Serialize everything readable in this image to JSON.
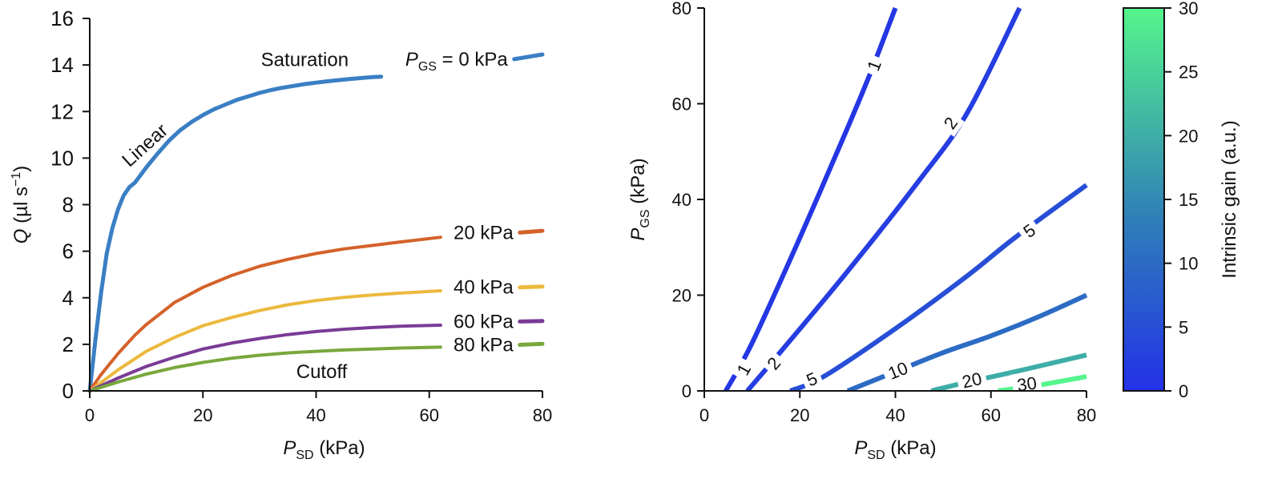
{
  "colors": {
    "gs0": "#3a7fc4",
    "gs20": "#d4622a",
    "gs40": "#ebb93d",
    "gs60": "#7a3b96",
    "gs80": "#78a83c",
    "axis": "#111111",
    "cbar_low": "#2331e8",
    "cbar_mid": "#2f7fb8",
    "cbar_high": "#55f58c"
  },
  "chart_data": [
    {
      "type": "line",
      "title": "",
      "xlabel": {
        "main": "P",
        "sub": "SD",
        "unit": " (kPa)"
      },
      "ylabel": {
        "main": "Q",
        "unit_pre": " (µl s",
        "sup": "−1",
        "unit_post": ")"
      },
      "xlim": [
        0,
        80
      ],
      "ylim": [
        0,
        16
      ],
      "xticks": [
        0,
        20,
        40,
        60,
        80
      ],
      "yticks": [
        0,
        2,
        4,
        6,
        8,
        10,
        12,
        14,
        16
      ],
      "series": [
        {
          "name": "P_GS = 0 kPa",
          "label": "0 kPa",
          "label_prefix": "P",
          "label_sub": "GS",
          "label_eq": " = ",
          "color_key": "gs0",
          "x": [
            0,
            1,
            2,
            3,
            4,
            5,
            6,
            7,
            8,
            10,
            12,
            14,
            16,
            18,
            20,
            22,
            24,
            26,
            28,
            30,
            32,
            34,
            36,
            38,
            40,
            42,
            44,
            46,
            48,
            50,
            51.5
          ],
          "y": [
            0,
            2.2,
            4.2,
            5.9,
            7.0,
            7.8,
            8.4,
            8.75,
            8.95,
            9.6,
            10.2,
            10.75,
            11.2,
            11.55,
            11.85,
            12.1,
            12.3,
            12.5,
            12.65,
            12.8,
            12.92,
            13.02,
            13.1,
            13.18,
            13.24,
            13.3,
            13.35,
            13.4,
            13.44,
            13.48,
            13.5
          ],
          "marker_x": [
            75,
            80
          ],
          "marker_y": [
            14.25,
            14.45
          ]
        },
        {
          "name": "20 kPa",
          "label": "20 kPa",
          "color_key": "gs20",
          "x": [
            0,
            2,
            5,
            8,
            10,
            15,
            20,
            25,
            30,
            35,
            40,
            45,
            50,
            55,
            62
          ],
          "y": [
            0,
            0.7,
            1.6,
            2.4,
            2.85,
            3.8,
            4.45,
            4.95,
            5.35,
            5.65,
            5.9,
            6.1,
            6.25,
            6.4,
            6.6
          ],
          "marker_x": [
            76,
            80
          ],
          "marker_y": [
            6.8,
            6.88
          ]
        },
        {
          "name": "40 kPa",
          "label": "40 kPa",
          "color_key": "gs40",
          "x": [
            0,
            5,
            10,
            15,
            20,
            25,
            30,
            35,
            40,
            45,
            50,
            55,
            62
          ],
          "y": [
            0,
            0.9,
            1.7,
            2.3,
            2.8,
            3.15,
            3.45,
            3.7,
            3.88,
            4.02,
            4.12,
            4.2,
            4.3
          ],
          "marker_x": [
            76,
            80
          ],
          "marker_y": [
            4.45,
            4.48
          ]
        },
        {
          "name": "60 kPa",
          "label": "60 kPa",
          "color_key": "gs60",
          "x": [
            0,
            5,
            10,
            15,
            20,
            25,
            30,
            35,
            40,
            45,
            50,
            55,
            62
          ],
          "y": [
            0,
            0.55,
            1.05,
            1.45,
            1.8,
            2.05,
            2.25,
            2.42,
            2.55,
            2.65,
            2.72,
            2.78,
            2.82
          ],
          "marker_x": [
            76,
            80
          ],
          "marker_y": [
            2.98,
            3.0
          ]
        },
        {
          "name": "80 kPa",
          "label": "80 kPa",
          "color_key": "gs80",
          "x": [
            0,
            5,
            10,
            15,
            20,
            25,
            30,
            35,
            40,
            45,
            50,
            55,
            62
          ],
          "y": [
            0,
            0.38,
            0.72,
            1.0,
            1.22,
            1.4,
            1.53,
            1.63,
            1.7,
            1.76,
            1.8,
            1.84,
            1.88
          ],
          "marker_x": [
            76,
            80
          ],
          "marker_y": [
            1.98,
            2.02
          ]
        }
      ],
      "annotations": [
        {
          "text": "Saturation",
          "x": 38,
          "y": 13.95,
          "rotate": 0
        },
        {
          "text": "Linear",
          "x": 10.5,
          "y": 10.35,
          "rotate": -42
        },
        {
          "text": "Cutoff",
          "x": 41,
          "y": 0.55,
          "rotate": 0
        }
      ]
    },
    {
      "type": "contour",
      "title": "",
      "xlabel": {
        "main": "P",
        "sub": "SD",
        "unit": " (kPa)"
      },
      "ylabel": {
        "main": "P",
        "sub": "GS",
        "unit": " (kPa)"
      },
      "xlim": [
        0,
        80
      ],
      "ylim": [
        0,
        80
      ],
      "xticks": [
        0,
        20,
        40,
        60,
        80
      ],
      "yticks": [
        0,
        20,
        40,
        60,
        80
      ],
      "levels": [
        {
          "value": 1,
          "label": "1",
          "x": [
            4.5,
            10,
            20,
            30,
            35,
            40
          ],
          "y": [
            0,
            10,
            32,
            55,
            67,
            80
          ],
          "labels_at": [
            [
              8.2,
              4.5
            ],
            [
              35.5,
              68
            ]
          ]
        },
        {
          "value": 2,
          "label": "2",
          "x": [
            9,
            15,
            30,
            45,
            55,
            66
          ],
          "y": [
            0,
            7,
            25,
            44,
            58,
            80
          ],
          "labels_at": [
            [
              14.5,
              5.8
            ],
            [
              51.5,
              56
            ]
          ]
        },
        {
          "value": 5,
          "label": "5",
          "x": [
            18,
            25,
            40,
            55,
            65,
            80
          ],
          "y": [
            0,
            3,
            13,
            24,
            32,
            43
          ],
          "labels_at": [
            [
              22.5,
              2.5
            ],
            [
              68,
              33.5
            ]
          ]
        },
        {
          "value": 10,
          "label": "10",
          "x": [
            30,
            40,
            50,
            60,
            70,
            80
          ],
          "y": [
            0,
            4,
            8,
            11.5,
            15.5,
            20
          ],
          "labels_at": [
            [
              40.5,
              4.3
            ]
          ]
        },
        {
          "value": 20,
          "label": "20",
          "x": [
            47.5,
            55,
            65,
            80
          ],
          "y": [
            0,
            1.8,
            4,
            7.5
          ],
          "labels_at": [
            [
              56,
              2.3
            ]
          ]
        },
        {
          "value": 30,
          "label": "30",
          "x": [
            61.5,
            70,
            80
          ],
          "y": [
            0,
            1.2,
            3
          ],
          "labels_at": [
            [
              67.5,
              1.5
            ]
          ]
        }
      ],
      "colorbar": {
        "label": "Intrinsic gain (a.u.)",
        "range": [
          0,
          30
        ],
        "ticks": [
          0,
          5,
          10,
          15,
          20,
          25,
          30
        ]
      }
    }
  ]
}
